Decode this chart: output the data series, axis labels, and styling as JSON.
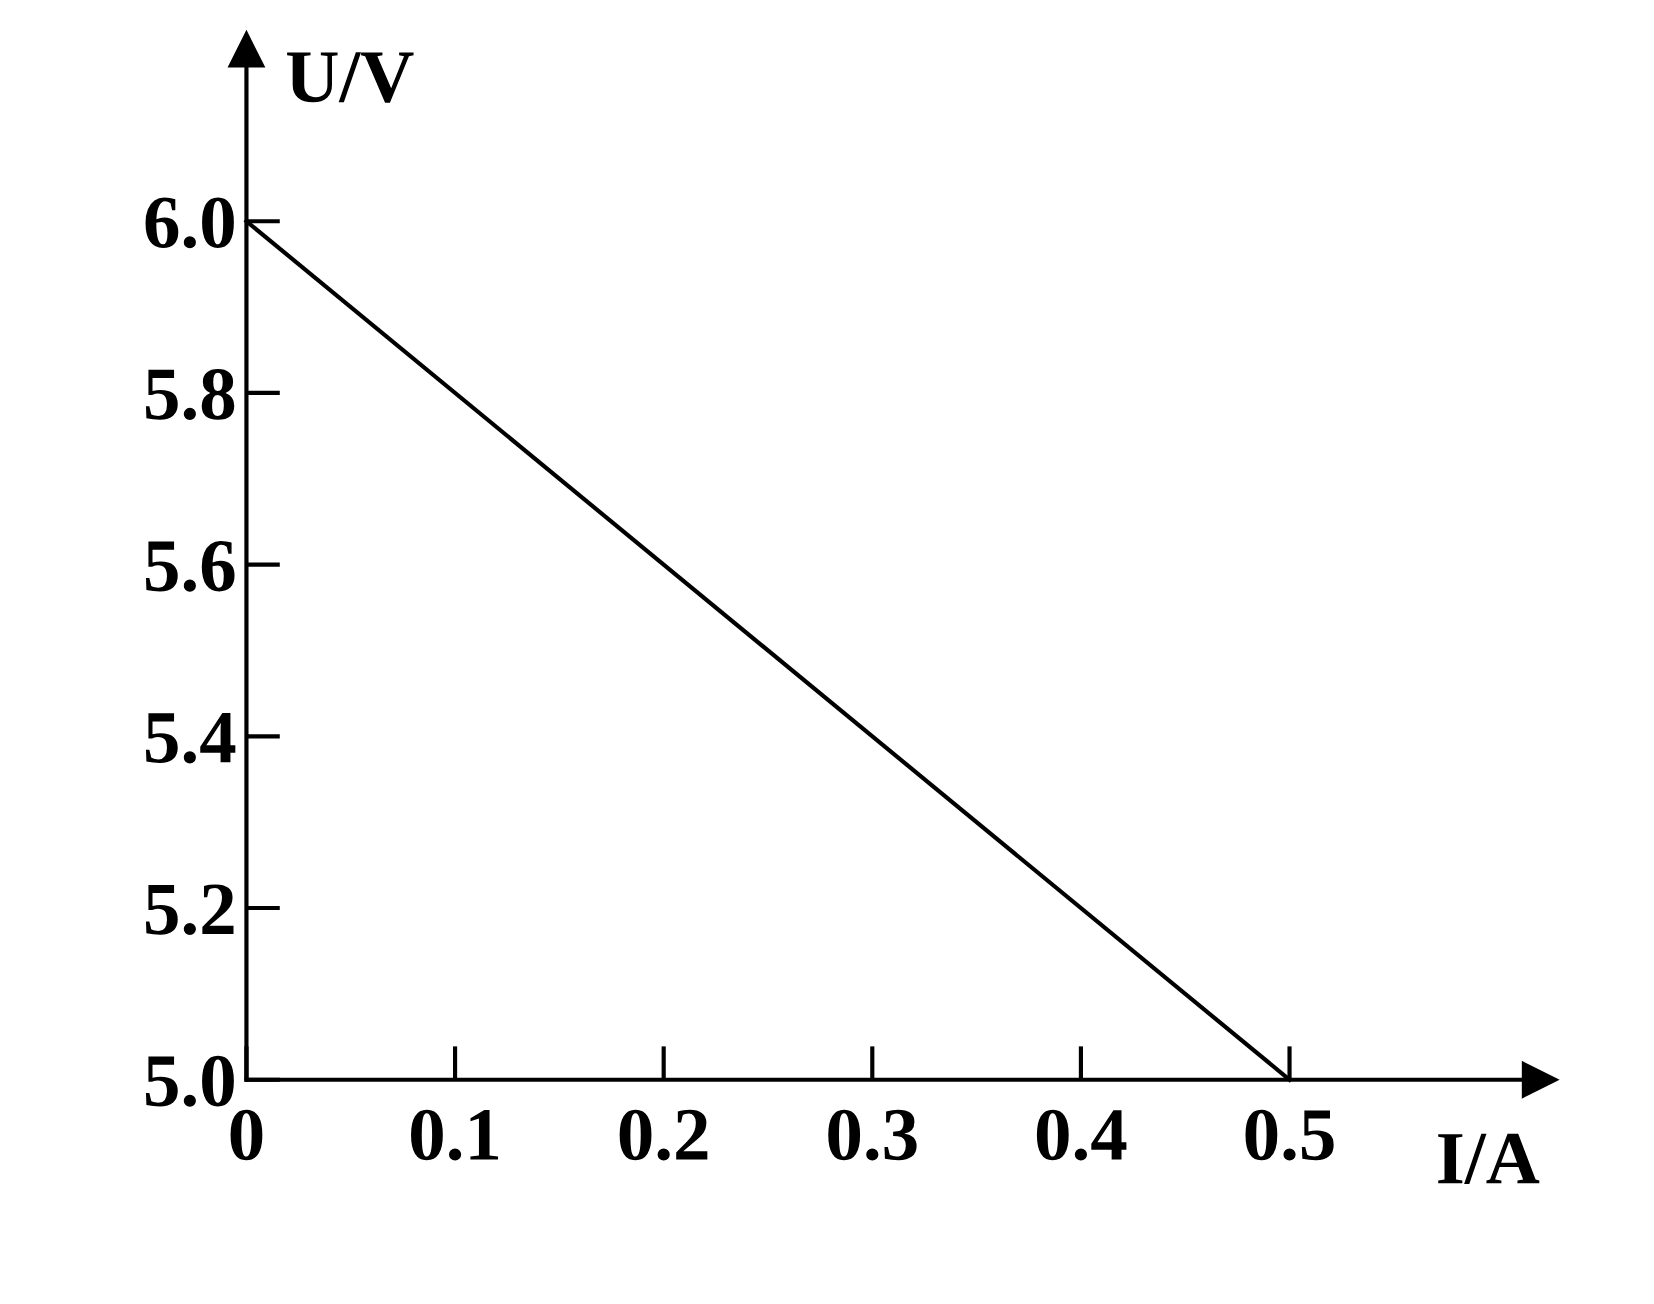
{
  "chart_data": {
    "type": "line",
    "xlabel": "I/A",
    "ylabel": "U/V",
    "x": [
      0,
      0.5
    ],
    "series": [
      {
        "color": "#000000",
        "values": [
          6.0,
          5.0
        ]
      }
    ],
    "xlim": [
      0,
      0.62
    ],
    "ylim": [
      5.0,
      6.2
    ],
    "xticks": [
      {
        "value": 0,
        "label": "0"
      },
      0.1,
      0.2,
      0.3,
      0.4,
      0.5
    ],
    "yticks": [
      {
        "value": 5.0,
        "label": "5.0"
      },
      5.2,
      5.4,
      5.6,
      5.8,
      {
        "value": 6.0,
        "label": "6.0"
      }
    ],
    "grid": false,
    "marker": "none",
    "line_style": "solid"
  }
}
